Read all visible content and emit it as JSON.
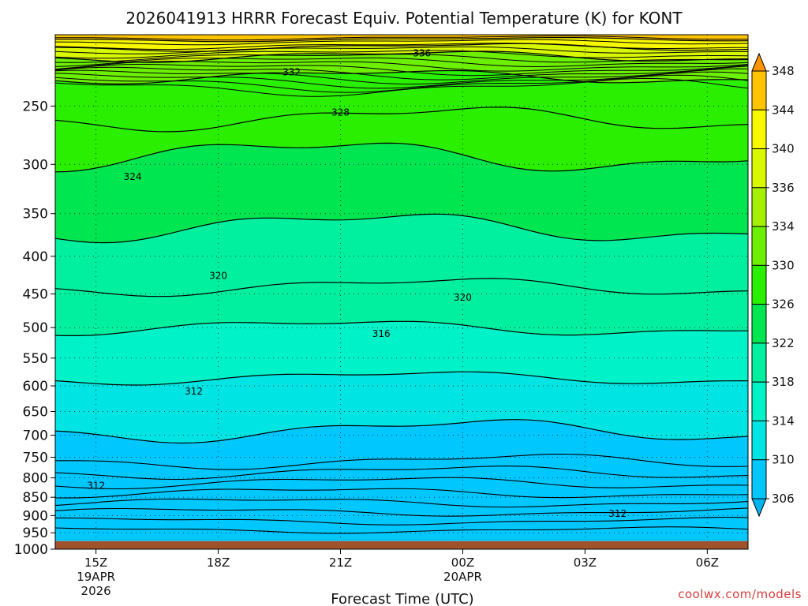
{
  "chart_data": {
    "type": "heatmap",
    "title": "2026041913 HRRR Forecast Equiv. Potential Temperature (K) for KONT",
    "xlabel": "Forecast Time (UTC)",
    "ylabel": "",
    "y_scale": "log-pressure",
    "y_reversed": true,
    "yticks": [
      250,
      300,
      350,
      400,
      450,
      500,
      550,
      600,
      650,
      700,
      750,
      800,
      850,
      900,
      950,
      1000
    ],
    "ylim": [
      1000,
      200
    ],
    "xlim": [
      14,
      31
    ],
    "xticks": [
      {
        "x": 15,
        "label": "15Z",
        "date": "19APR",
        "year": "2026"
      },
      {
        "x": 18,
        "label": "18Z",
        "date": "",
        "year": ""
      },
      {
        "x": 21,
        "label": "21Z",
        "date": "",
        "year": ""
      },
      {
        "x": 24,
        "label": "00Z",
        "date": "20APR",
        "year": ""
      },
      {
        "x": 27,
        "label": "03Z",
        "date": "",
        "year": ""
      },
      {
        "x": 30,
        "label": "06Z",
        "date": "",
        "year": ""
      }
    ],
    "grid": true,
    "ground_level_hPa": 975,
    "colorbar": {
      "levels": [
        306,
        310,
        314,
        318,
        322,
        326,
        330,
        334,
        336,
        340,
        344,
        348
      ],
      "colors": [
        "#00c8ff",
        "#00e4e4",
        "#00f2c8",
        "#00f0a0",
        "#00e650",
        "#2af000",
        "#6cf000",
        "#a4f000",
        "#d8f800",
        "#f8f800",
        "#ffc400",
        "#ff9400"
      ],
      "extend": "both"
    },
    "contour_labels": [
      {
        "text": "336",
        "x": 23.0,
        "p": 212
      },
      {
        "text": "332",
        "x": 19.8,
        "p": 225
      },
      {
        "text": "328",
        "x": 21.0,
        "p": 255
      },
      {
        "text": "324",
        "x": 15.9,
        "p": 312
      },
      {
        "text": "320",
        "x": 18.0,
        "p": 425
      },
      {
        "text": "320",
        "x": 24.0,
        "p": 455
      },
      {
        "text": "316",
        "x": 22.0,
        "p": 510
      },
      {
        "text": "312",
        "x": 17.4,
        "p": 610
      },
      {
        "text": "312",
        "x": 15.0,
        "p": 820
      },
      {
        "text": "312",
        "x": 27.8,
        "p": 895
      }
    ]
  },
  "watermark": "coolwx.com/models"
}
